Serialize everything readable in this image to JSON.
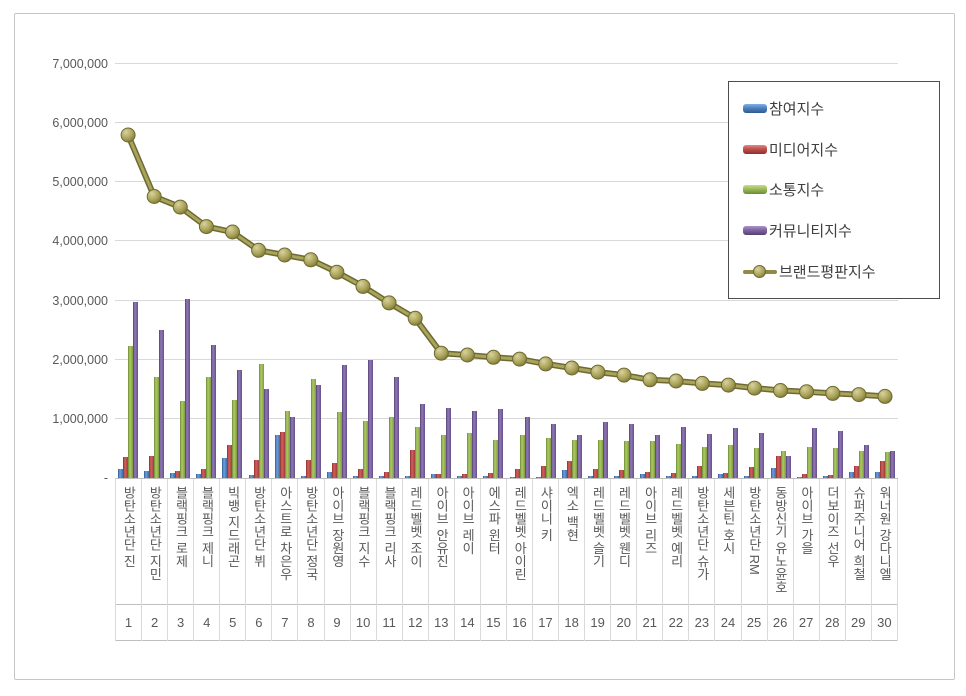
{
  "chart": {
    "y_axis": {
      "labels_top_to_bottom": [
        "7,000,000",
        "6,000,000",
        "5,000,000",
        "4,000,000",
        "3,000,000",
        "2,000,000",
        "1,000,000",
        "-"
      ]
    },
    "colors": {
      "participation": "#4F81BD",
      "media": "#C0504D",
      "communication": "#9BBB59",
      "community": "#8064A2",
      "reputation": "#948A54",
      "gridline": "#D9D9D9",
      "axis_line": "#BFBFBF",
      "tick_text": "#595959",
      "legend_border": "#4D4D4D"
    }
  },
  "chart_data": {
    "type": "bar",
    "note": "grouped 3-D style bars with one overlaid line series; legend overlays plot at top right; y gridlines on; zero shown as dash",
    "ylim": [
      0,
      7000000
    ],
    "y_tick_interval": 1000000,
    "categories": [
      "방탄소년단 진",
      "방탄소년단 지민",
      "블랙핑크 로제",
      "블랙핑크 제니",
      "빅뱅 지드래곤",
      "방탄소년단 뷔",
      "아스트로 차은우",
      "방탄소년단 정국",
      "아이브 장원영",
      "블랙핑크 지수",
      "블랙핑크 리사",
      "레드벨벳 조이",
      "아이브 안유진",
      "아이브 레이",
      "에스파 윈터",
      "레드벨벳 아이린",
      "샤이니 키",
      "엑소 백현",
      "레드벨벳 슬기",
      "레드벨벳 웬디",
      "아이브 리즈",
      "레드벨벳 예리",
      "방탄소년단 슈가",
      "세븐틴 호시",
      "방탄소년단 RM",
      "동방신기 유노윤호",
      "아이브 가을",
      "더보이즈 선우",
      "슈퍼주니어 희철",
      "워너원 강다니엘"
    ],
    "ranks": [
      "1",
      "2",
      "3",
      "4",
      "5",
      "6",
      "7",
      "8",
      "9",
      "10",
      "11",
      "12",
      "13",
      "14",
      "15",
      "16",
      "17",
      "18",
      "19",
      "20",
      "21",
      "22",
      "23",
      "24",
      "25",
      "26",
      "27",
      "28",
      "29",
      "30"
    ],
    "series": [
      {
        "key": "participation",
        "name": "참여지수",
        "type": "bar",
        "color": "#4F81BD",
        "values": [
          160000,
          120000,
          90000,
          70000,
          340000,
          50000,
          730000,
          30000,
          100000,
          30000,
          30000,
          30000,
          70000,
          30000,
          30000,
          20000,
          20000,
          130000,
          30000,
          30000,
          70000,
          30000,
          30000,
          60000,
          30000,
          170000,
          10000,
          30000,
          100000,
          100000
        ]
      },
      {
        "key": "media",
        "name": "미디어지수",
        "type": "bar",
        "color": "#C0504D",
        "values": [
          350000,
          370000,
          120000,
          160000,
          550000,
          300000,
          770000,
          300000,
          260000,
          150000,
          110000,
          470000,
          60000,
          70000,
          80000,
          160000,
          210000,
          280000,
          160000,
          140000,
          110000,
          80000,
          210000,
          90000,
          180000,
          370000,
          60000,
          50000,
          200000,
          290000
        ]
      },
      {
        "key": "communication",
        "name": "소통지수",
        "type": "bar",
        "color": "#9BBB59",
        "values": [
          2230000,
          1710000,
          1310000,
          1700000,
          1320000,
          1920000,
          1140000,
          1670000,
          1110000,
          970000,
          1040000,
          860000,
          720000,
          760000,
          650000,
          720000,
          680000,
          640000,
          640000,
          620000,
          630000,
          580000,
          520000,
          560000,
          500000,
          450000,
          520000,
          510000,
          450000,
          440000
        ]
      },
      {
        "key": "community",
        "name": "커뮤니티지수",
        "type": "bar",
        "color": "#8064A2",
        "values": [
          2970000,
          2500000,
          3020000,
          2250000,
          1830000,
          1510000,
          1030000,
          1580000,
          1910000,
          2000000,
          1710000,
          1250000,
          1180000,
          1140000,
          1170000,
          1040000,
          920000,
          720000,
          950000,
          910000,
          720000,
          870000,
          750000,
          850000,
          760000,
          370000,
          840000,
          790000,
          560000,
          450000
        ]
      },
      {
        "key": "reputation",
        "name": "브랜드평판지수",
        "type": "line",
        "color": "#948A54",
        "values": [
          5800000,
          4760000,
          4580000,
          4250000,
          4160000,
          3850000,
          3770000,
          3690000,
          3480000,
          3240000,
          2960000,
          2700000,
          2110000,
          2080000,
          2040000,
          2010000,
          1930000,
          1860000,
          1790000,
          1740000,
          1660000,
          1640000,
          1600000,
          1570000,
          1520000,
          1480000,
          1460000,
          1430000,
          1410000,
          1380000
        ]
      }
    ],
    "legend_position": "overlay-top-right",
    "legend_entries": [
      "참여지수",
      "미디어지수",
      "소통지수",
      "커뮤니티지수",
      "브랜드평판지수"
    ]
  }
}
